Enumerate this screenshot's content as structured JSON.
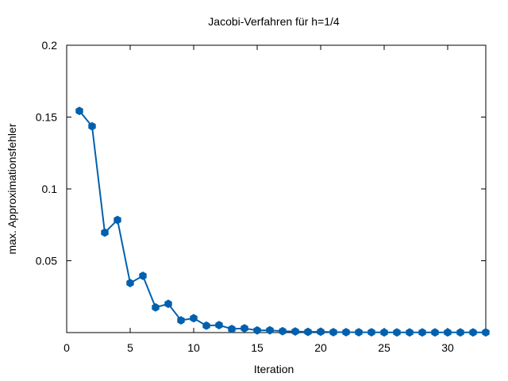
{
  "chart_data": {
    "type": "line",
    "title": "Jacobi-Verfahren für h=1/4",
    "xlabel": "Iteration",
    "ylabel": "max. Approximationsfehler",
    "xlim": [
      0,
      33
    ],
    "ylim": [
      0,
      0.2
    ],
    "x_ticks": [
      "0",
      "5",
      "10",
      "15",
      "20",
      "25",
      "30"
    ],
    "y_ticks": [
      "0.05",
      "0.1",
      "0.15",
      "0.2"
    ],
    "x_tick_values": [
      0,
      5,
      10,
      15,
      20,
      25,
      30
    ],
    "y_tick_values": [
      0.05,
      0.1,
      0.15,
      0.2
    ],
    "grid": false,
    "color": "#0060ad",
    "series": [
      {
        "x": [
          1,
          2,
          3,
          4,
          5,
          6,
          7,
          8,
          9,
          10,
          11,
          12,
          13,
          14,
          15,
          16,
          17,
          18,
          19,
          20,
          21,
          22,
          23,
          24,
          25,
          26,
          27,
          28,
          29,
          30,
          31,
          32,
          33
        ],
        "values": [
          0.1543,
          0.1436,
          0.0696,
          0.0784,
          0.0345,
          0.0395,
          0.0175,
          0.02,
          0.0085,
          0.01,
          0.0048,
          0.0052,
          0.0025,
          0.003,
          0.0015,
          0.0016,
          0.001,
          0.0008,
          0.0005,
          0.0006,
          0.0003,
          0.0003,
          0.0002,
          0.0002,
          0.0001,
          0.0001,
          0.0001,
          0.0001,
          0.0001,
          0.0001,
          0.0001,
          0.0001,
          0.0001
        ]
      }
    ]
  }
}
